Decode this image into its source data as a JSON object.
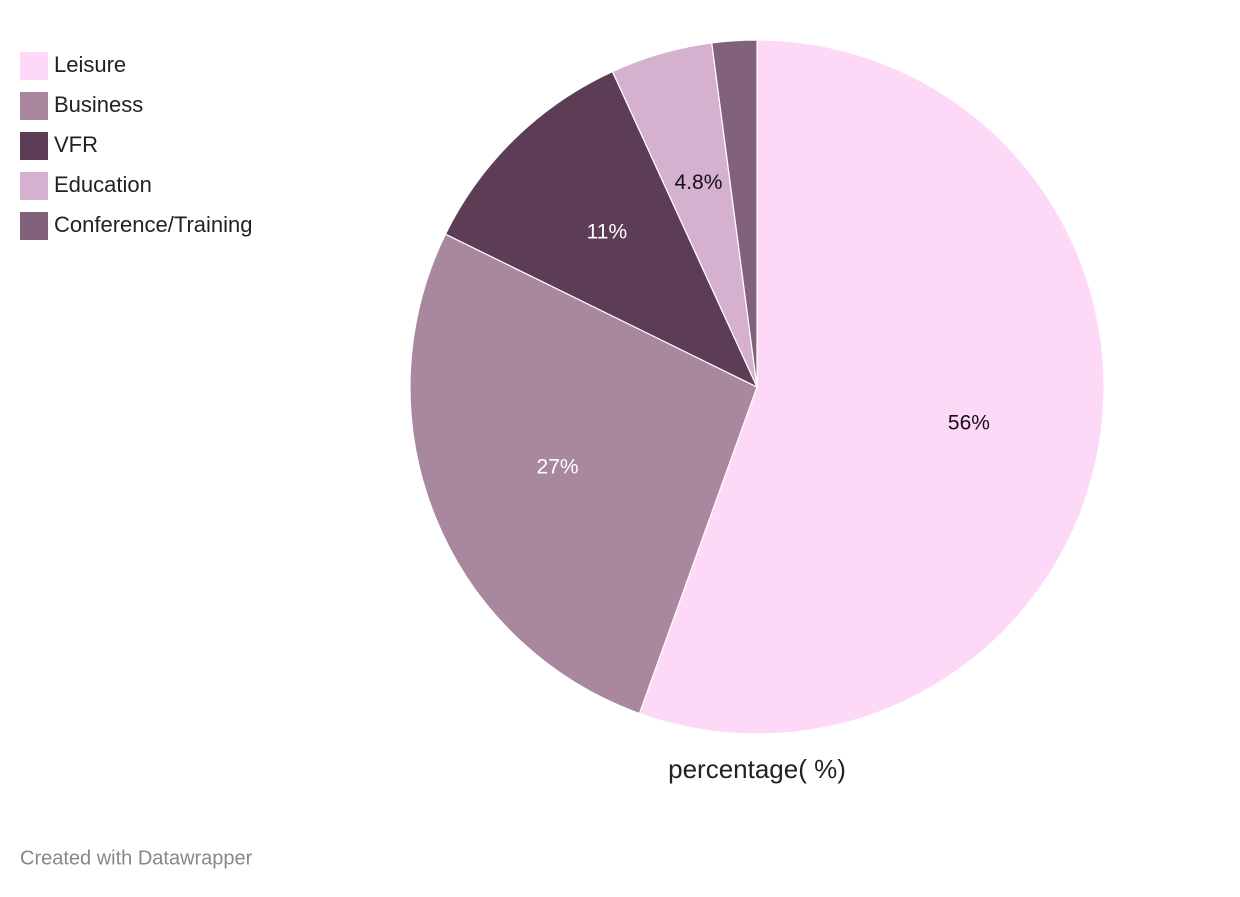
{
  "chart_data": {
    "type": "pie",
    "categories": [
      "Leisure",
      "Business",
      "VFR",
      "Education",
      "Conference/Training"
    ],
    "values": [
      56,
      27,
      11,
      4.8,
      2.1
    ],
    "value_labels": [
      "56%",
      "27%",
      "11%",
      "4.8%",
      null
    ],
    "colors": [
      "#fdd9f7",
      "#a9879f",
      "#5c3d55",
      "#d5b0cf",
      "#82627a"
    ],
    "label": "percentage( %)",
    "credit": "Created with Datawrapper",
    "legend": "top-left"
  }
}
